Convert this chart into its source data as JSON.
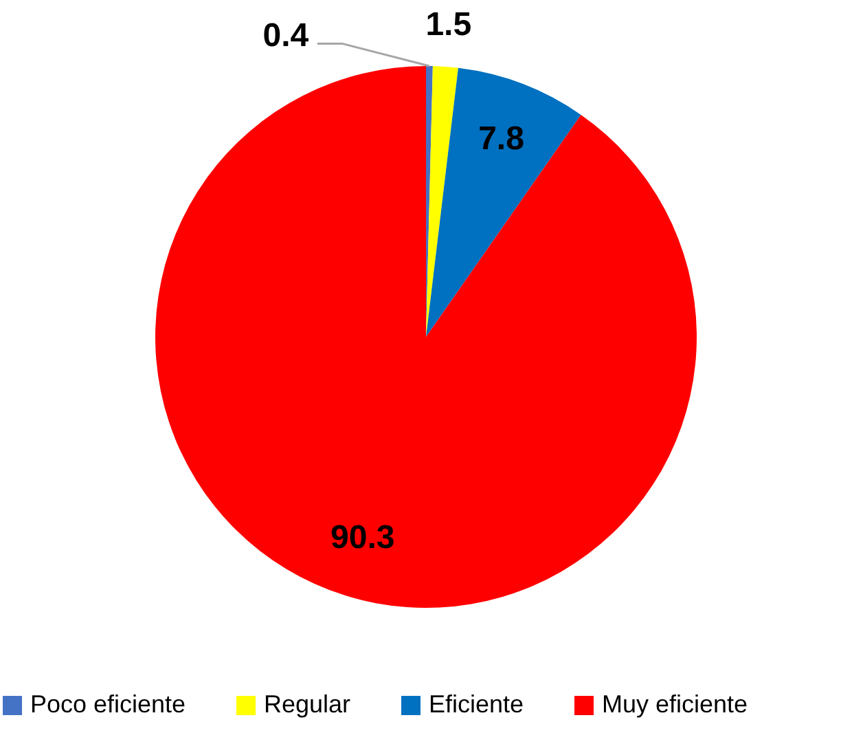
{
  "chart_data": {
    "type": "pie",
    "categories": [
      "Poco eficiente",
      "Regular",
      "Eficiente",
      "Muy eficiente"
    ],
    "values": [
      0.4,
      1.5,
      7.8,
      90.3
    ],
    "colors": [
      "#4472c4",
      "#ffff00",
      "#0070c0",
      "#ff0000"
    ],
    "data_labels": true,
    "legend": "bottom"
  }
}
